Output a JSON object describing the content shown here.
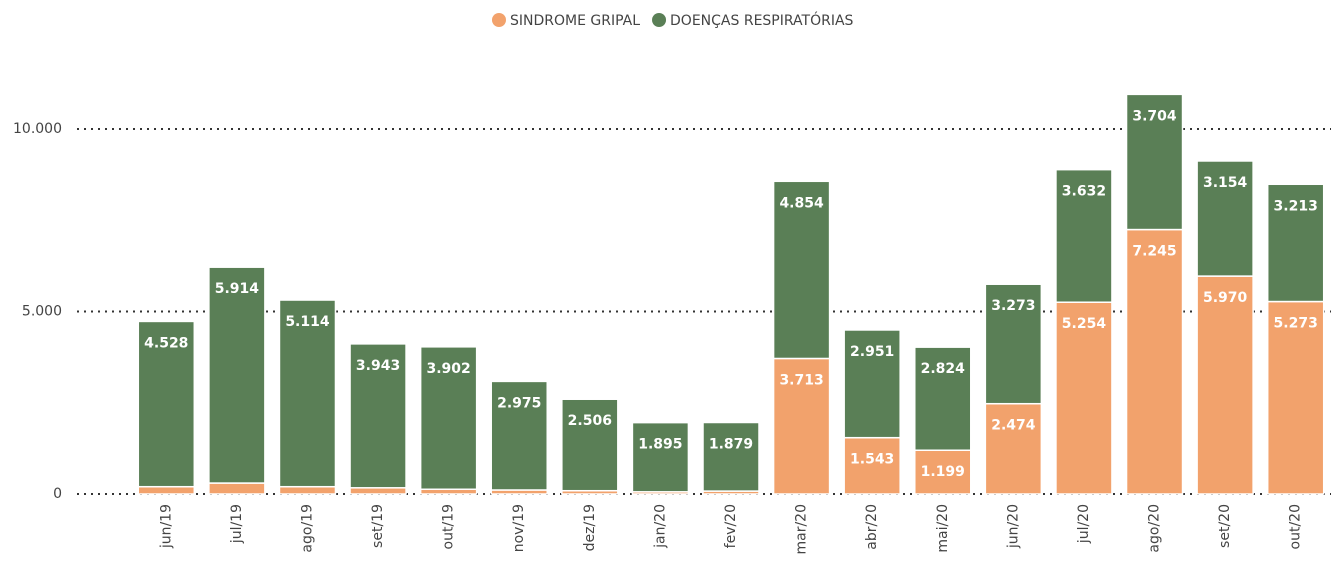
{
  "chart_data": {
    "type": "stacked_bar",
    "categories": [
      "jun/19",
      "jul/19",
      "ago/19",
      "set/19",
      "out/19",
      "nov/19",
      "dez/19",
      "jan/20",
      "fev/20",
      "mar/20",
      "abr/20",
      "mai/20",
      "jun/20",
      "jul/20",
      "ago/20",
      "set/20",
      "out/20"
    ],
    "series": [
      {
        "name": "SINDROME GRIPAL",
        "color": "#f2a26c",
        "values": [
          200,
          300,
          200,
          170,
          130,
          110,
          90,
          60,
          80,
          3713,
          1543,
          1199,
          2474,
          5254,
          7245,
          5970,
          5273
        ],
        "value_labels": [
          null,
          null,
          null,
          null,
          null,
          null,
          null,
          null,
          null,
          "3.713",
          "1.543",
          "1.199",
          "2.474",
          "5.254",
          "7.245",
          "5.970",
          "5.273"
        ]
      },
      {
        "name": "DOENÇAS RESPIRATÓRIAS",
        "color": "#5a7f56",
        "values": [
          4528,
          5914,
          5114,
          3943,
          3902,
          2975,
          2506,
          1895,
          1879,
          4854,
          2951,
          2824,
          3273,
          3632,
          3704,
          3154,
          3213
        ],
        "value_labels": [
          "4.528",
          "5.914",
          "5.114",
          "3.943",
          "3.902",
          "2.975",
          "2.506",
          "1.895",
          "1.879",
          "4.854",
          "2.951",
          "2.824",
          "3.273",
          "3.632",
          "3.704",
          "3.154",
          "3.213"
        ]
      }
    ],
    "ylim": [
      0,
      11000
    ],
    "yticks": [
      0,
      {
        "value": 5000,
        "label": "5.000"
      },
      {
        "value": 10000,
        "label": "10.000"
      }
    ],
    "grid": true,
    "legend": "top"
  }
}
